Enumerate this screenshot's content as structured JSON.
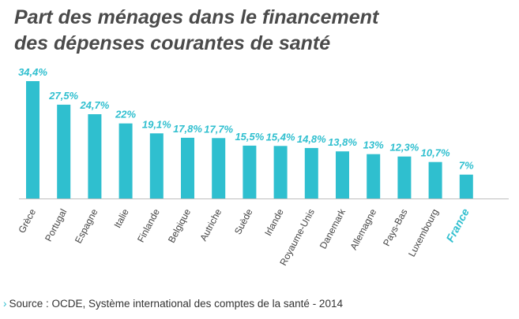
{
  "title_lines": [
    "Part des ménages dans le financement",
    "des dépenses courantes de santé"
  ],
  "source_arrow": "›",
  "source": "Source : OCDE, Système international des comptes de la santé - 2014",
  "colors": {
    "bar": "#2fbfcf",
    "label": "#2fbfcf",
    "axis_text": "#444444",
    "highlight": "#2fbfcf",
    "title": "#4a4a4a"
  },
  "chart_data": {
    "type": "bar",
    "title": "Part des ménages dans le financement des dépenses courantes de santé",
    "xlabel": "",
    "ylabel": "",
    "ylim": [
      0,
      36
    ],
    "grid": false,
    "highlight_category": "France",
    "categories": [
      "Grèce",
      "Portugal",
      "Espagne",
      "Italie",
      "Finlande",
      "Belgique",
      "Autriche",
      "Suède",
      "Irlande",
      "Royaume-Unis",
      "Danemark",
      "Allemagne",
      "Pays-Bas",
      "Luxembourg",
      "France"
    ],
    "values": [
      34.4,
      27.5,
      24.7,
      22,
      19.1,
      17.8,
      17.7,
      15.5,
      15.4,
      14.8,
      13.8,
      13,
      12.3,
      10.7,
      7
    ],
    "value_labels": [
      "34,4%",
      "27,5%",
      "24,7%",
      "22%",
      "19,1%",
      "17,8%",
      "17,7%",
      "15,5%",
      "15,4%",
      "14,8%",
      "13,8%",
      "13%",
      "12,3%",
      "10,7%",
      "7%"
    ]
  }
}
